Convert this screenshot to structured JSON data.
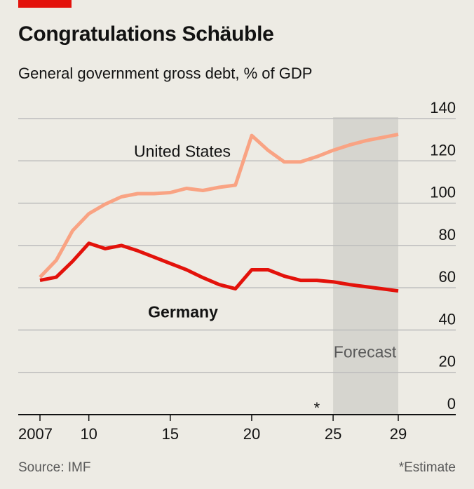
{
  "header": {
    "title": "Congratulations Schäuble",
    "subtitle": "General government gross debt, % of GDP"
  },
  "footer": {
    "source": "Source: IMF",
    "note": "*Estimate"
  },
  "colors": {
    "accent": "#e3120b",
    "germany": "#e3120b",
    "united_states": "#f9a383",
    "forecast_band": "#d6d5cf",
    "grid": "#bdbdbd",
    "background": "#edebe4"
  },
  "chart_data": {
    "type": "line",
    "title": "Congratulations Schäuble",
    "subtitle": "General government gross debt, % of GDP",
    "x": [
      2007,
      2008,
      2009,
      2010,
      2011,
      2012,
      2013,
      2014,
      2015,
      2016,
      2017,
      2018,
      2019,
      2020,
      2021,
      2022,
      2023,
      2024,
      2025,
      2026,
      2027,
      2028,
      2029
    ],
    "x_tick_values": [
      2007,
      2010,
      2015,
      2020,
      2025,
      2029
    ],
    "x_tick_labels": [
      "2007",
      "10",
      "15",
      "20",
      "25",
      "29"
    ],
    "ylim": [
      0,
      140
    ],
    "y_ticks": [
      0,
      20,
      40,
      60,
      80,
      100,
      120,
      140
    ],
    "grid": true,
    "estimate_marker": {
      "x": 2024,
      "label": "*"
    },
    "forecast": {
      "from": 2025,
      "to": 2029,
      "label": "Forecast"
    },
    "series": [
      {
        "name": "United States",
        "color": "#f9a383",
        "values": [
          65,
          73,
          87,
          95,
          99.5,
          103,
          104.5,
          104.5,
          105,
          107,
          106,
          107.5,
          108.5,
          132,
          125,
          119.5,
          119.5,
          122,
          125,
          127.5,
          129.5,
          131,
          132.5
        ]
      },
      {
        "name": "Germany",
        "color": "#e3120b",
        "values": [
          63.5,
          65,
          72.5,
          81,
          78.5,
          80,
          77.5,
          74.5,
          71.5,
          68.5,
          64.8,
          61.5,
          59.5,
          68.5,
          68.5,
          65.5,
          63.5,
          63.5,
          62.8,
          61.5,
          60.5,
          59.5,
          58.5
        ]
      }
    ]
  }
}
